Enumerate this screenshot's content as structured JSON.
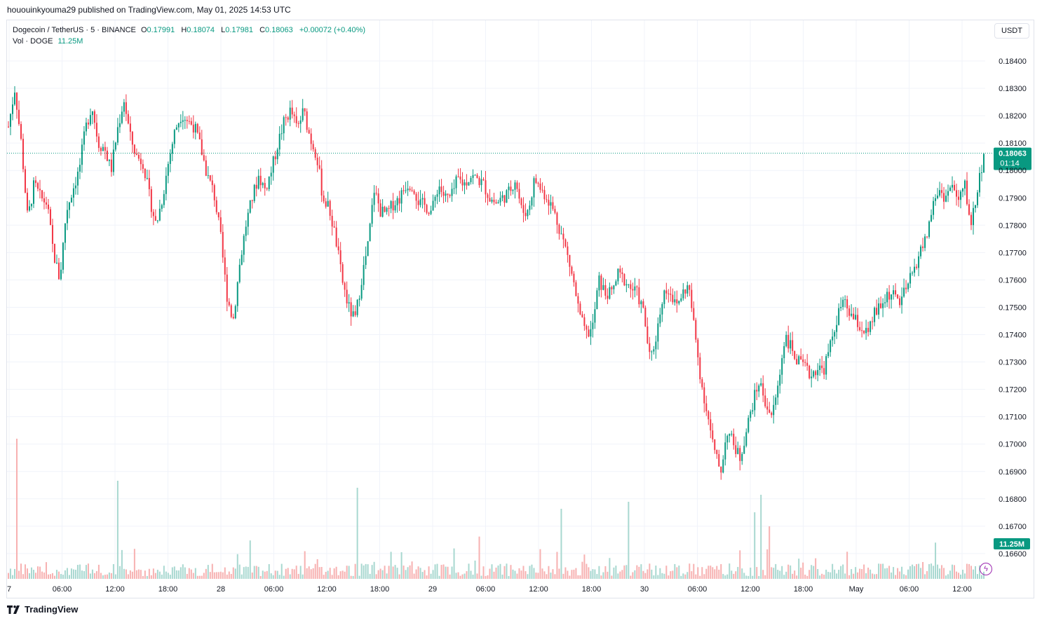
{
  "header": {
    "published": "hououinkyouma29 published on TradingView.com, May 01, 2025 14:53 UTC"
  },
  "legend": {
    "symbol": "Dogecoin / TetherUS · 5 · BINANCE",
    "open_label": "O",
    "open": "0.17991",
    "high_label": "H",
    "high": "0.18074",
    "low_label": "L",
    "low": "0.17981",
    "close_label": "C",
    "close": "0.18063",
    "change": "+0.00072 (+0.40%)",
    "vol_label": "Vol · DOGE",
    "vol_value": "11.25M"
  },
  "toolbar": {
    "currency": "USDT"
  },
  "footer": {
    "brand": "TradingView"
  },
  "colors": {
    "up": "#089981",
    "down": "#f23645",
    "up_volume": "#a8d8d0",
    "down_volume": "#f7b1b1"
  },
  "icons": {
    "brand": "tradingview-logo-icon",
    "alert": "lightning-icon"
  },
  "chart_data": {
    "type": "candlestick",
    "title": "",
    "interval": "5",
    "exchange": "BINANCE",
    "quote_currency": "USDT",
    "ylim": [
      0.1655,
      0.1846
    ],
    "y_ticks": [
      "0.18400",
      "0.18300",
      "0.18200",
      "0.18100",
      "0.18000",
      "0.17900",
      "0.17800",
      "0.17700",
      "0.17600",
      "0.17500",
      "0.17400",
      "0.17300",
      "0.17200",
      "0.17100",
      "0.17000",
      "0.16900",
      "0.16800",
      "0.16700",
      "0.16600"
    ],
    "x_ticks": [
      "7",
      "06:00",
      "12:00",
      "18:00",
      "28",
      "06:00",
      "12:00",
      "18:00",
      "29",
      "06:00",
      "12:00",
      "18:00",
      "30",
      "06:00",
      "12:00",
      "18:00",
      "May",
      "06:00",
      "12:00"
    ],
    "last_price": "0.18063",
    "countdown": "01:14",
    "last_volume": "11.25M",
    "grid": true,
    "price_path": [
      [
        0,
        0.1816
      ],
      [
        2,
        0.183
      ],
      [
        4,
        0.181
      ],
      [
        6,
        0.1782
      ],
      [
        8,
        0.1795
      ],
      [
        10,
        0.179
      ],
      [
        12,
        0.1788
      ],
      [
        14,
        0.177
      ],
      [
        16,
        0.176
      ],
      [
        18,
        0.1785
      ],
      [
        20,
        0.1793
      ],
      [
        22,
        0.18
      ],
      [
        24,
        0.1815
      ],
      [
        26,
        0.1824
      ],
      [
        28,
        0.181
      ],
      [
        30,
        0.1808
      ],
      [
        32,
        0.18
      ],
      [
        34,
        0.1815
      ],
      [
        36,
        0.1826
      ],
      [
        38,
        0.1812
      ],
      [
        40,
        0.1805
      ],
      [
        42,
        0.1803
      ],
      [
        44,
        0.179
      ],
      [
        46,
        0.178
      ],
      [
        48,
        0.179
      ],
      [
        50,
        0.1804
      ],
      [
        52,
        0.1815
      ],
      [
        54,
        0.1821
      ],
      [
        56,
        0.1818
      ],
      [
        58,
        0.1816
      ],
      [
        60,
        0.1808
      ],
      [
        62,
        0.1798
      ],
      [
        64,
        0.1792
      ],
      [
        66,
        0.1777
      ],
      [
        68,
        0.1755
      ],
      [
        70,
        0.1745
      ],
      [
        72,
        0.1765
      ],
      [
        74,
        0.178
      ],
      [
        76,
        0.179
      ],
      [
        78,
        0.1798
      ],
      [
        80,
        0.1793
      ],
      [
        82,
        0.18
      ],
      [
        84,
        0.181
      ],
      [
        86,
        0.1818
      ],
      [
        88,
        0.1822
      ],
      [
        90,
        0.1815
      ],
      [
        92,
        0.1822
      ],
      [
        94,
        0.1812
      ],
      [
        96,
        0.1806
      ],
      [
        98,
        0.179
      ],
      [
        100,
        0.1786
      ],
      [
        102,
        0.1775
      ],
      [
        104,
        0.176
      ],
      [
        106,
        0.175
      ],
      [
        108,
        0.1745
      ],
      [
        110,
        0.176
      ],
      [
        112,
        0.1772
      ],
      [
        114,
        0.1793
      ],
      [
        116,
        0.1785
      ],
      [
        118,
        0.1784
      ],
      [
        120,
        0.1788
      ],
      [
        122,
        0.179
      ],
      [
        124,
        0.1795
      ],
      [
        126,
        0.1795
      ],
      [
        128,
        0.1788
      ],
      [
        130,
        0.1787
      ],
      [
        132,
        0.1785
      ],
      [
        134,
        0.1795
      ],
      [
        136,
        0.179
      ],
      [
        138,
        0.179
      ],
      [
        140,
        0.1797
      ],
      [
        142,
        0.1795
      ],
      [
        144,
        0.1798
      ],
      [
        146,
        0.1797
      ],
      [
        148,
        0.1795
      ],
      [
        150,
        0.179
      ],
      [
        152,
        0.1788
      ],
      [
        154,
        0.179
      ],
      [
        156,
        0.1792
      ],
      [
        158,
        0.1797
      ],
      [
        160,
        0.1785
      ],
      [
        162,
        0.1785
      ],
      [
        164,
        0.1797
      ],
      [
        166,
        0.1793
      ],
      [
        168,
        0.179
      ],
      [
        170,
        0.1785
      ],
      [
        172,
        0.1778
      ],
      [
        174,
        0.177
      ],
      [
        176,
        0.176
      ],
      [
        178,
        0.1747
      ],
      [
        180,
        0.174
      ],
      [
        182,
        0.1742
      ],
      [
        184,
        0.176
      ],
      [
        186,
        0.1755
      ],
      [
        188,
        0.1755
      ],
      [
        190,
        0.1762
      ],
      [
        192,
        0.176
      ],
      [
        194,
        0.1757
      ],
      [
        196,
        0.1755
      ],
      [
        198,
        0.1748
      ],
      [
        200,
        0.173
      ],
      [
        202,
        0.174
      ],
      [
        204,
        0.1755
      ],
      [
        206,
        0.1757
      ],
      [
        208,
        0.175
      ],
      [
        210,
        0.1755
      ],
      [
        212,
        0.1758
      ],
      [
        214,
        0.174
      ],
      [
        216,
        0.1722
      ],
      [
        218,
        0.171
      ],
      [
        220,
        0.1697
      ],
      [
        222,
        0.169
      ],
      [
        224,
        0.1705
      ],
      [
        226,
        0.17
      ],
      [
        228,
        0.1695
      ],
      [
        230,
        0.1705
      ],
      [
        232,
        0.1715
      ],
      [
        234,
        0.1723
      ],
      [
        236,
        0.1715
      ],
      [
        238,
        0.171
      ],
      [
        240,
        0.1722
      ],
      [
        242,
        0.174
      ],
      [
        244,
        0.1735
      ],
      [
        246,
        0.173
      ],
      [
        248,
        0.1728
      ],
      [
        250,
        0.1725
      ],
      [
        252,
        0.1728
      ],
      [
        254,
        0.1727
      ],
      [
        256,
        0.1735
      ],
      [
        258,
        0.1745
      ],
      [
        260,
        0.1752
      ],
      [
        262,
        0.1748
      ],
      [
        264,
        0.1745
      ],
      [
        266,
        0.1742
      ],
      [
        268,
        0.174
      ],
      [
        270,
        0.1748
      ],
      [
        272,
        0.175
      ],
      [
        274,
        0.1755
      ],
      [
        276,
        0.1754
      ],
      [
        278,
        0.1752
      ],
      [
        280,
        0.1757
      ],
      [
        282,
        0.1763
      ],
      [
        284,
        0.177
      ],
      [
        286,
        0.1775
      ],
      [
        288,
        0.1787
      ],
      [
        290,
        0.1793
      ],
      [
        292,
        0.179
      ],
      [
        294,
        0.1795
      ],
      [
        296,
        0.1788
      ],
      [
        298,
        0.1795
      ],
      [
        300,
        0.178
      ],
      [
        302,
        0.1793
      ],
      [
        304,
        0.1806
      ]
    ]
  }
}
